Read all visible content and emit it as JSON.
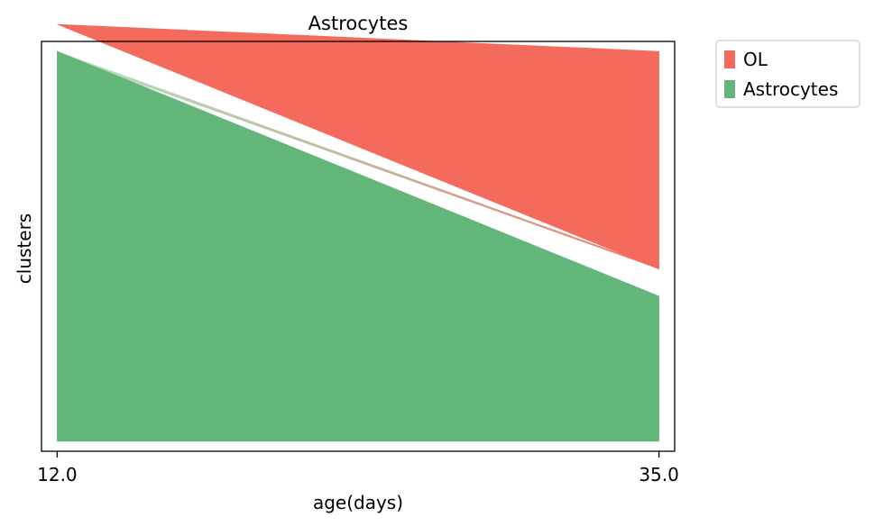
{
  "chart_data": {
    "type": "area",
    "title": "Astrocytes",
    "xlabel": "age(days)",
    "ylabel": "clusters",
    "x_ticks": [
      "12.0",
      "35.0"
    ],
    "xlim": [
      11.4,
      35.6
    ],
    "x": [
      12.0,
      35.0
    ],
    "grid": false,
    "legend_position": "outside-top-right",
    "series": [
      {
        "name": "OL",
        "color": "#f46b5d",
        "values": [
          0.0,
          0.6
        ]
      },
      {
        "name": "Astrocytes",
        "color": "#63b67a",
        "values": [
          1.0,
          0.4
        ]
      }
    ],
    "flows": [
      {
        "from": "Astrocytes",
        "to": "OL",
        "value": 0.02
      }
    ]
  }
}
